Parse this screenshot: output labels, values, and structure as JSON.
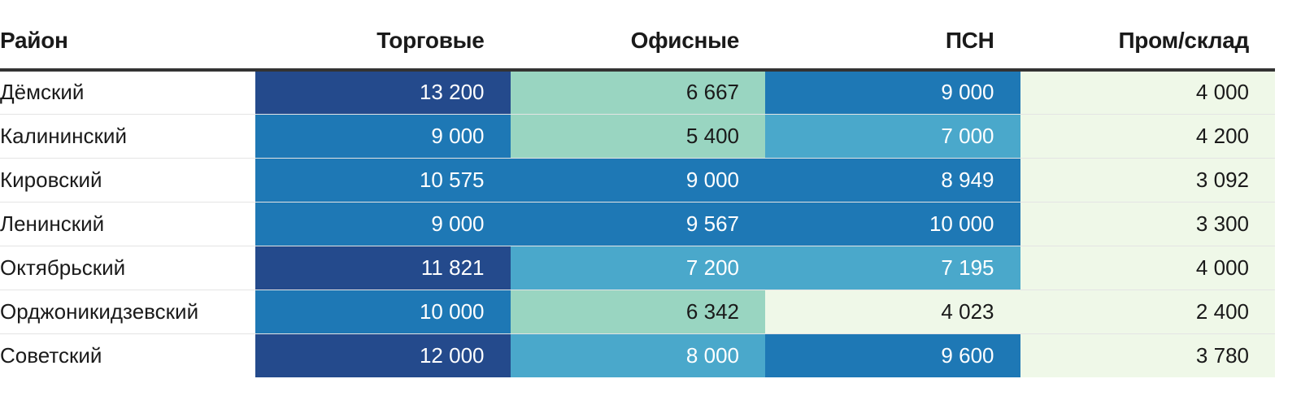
{
  "colors": {
    "text_light": "#ffffff",
    "text_dark": "#1a1a1a",
    "header_rule": "#333333",
    "row_divider": "#e4e4e4",
    "scale": [
      "#eff8e8",
      "#99d5c1",
      "#4aa8cb",
      "#1e78b5",
      "#244a8c"
    ],
    "scale_thresholds": [
      4500,
      7000,
      8500,
      11000
    ]
  },
  "chart_data": {
    "type": "table",
    "headers": [
      "Район",
      "Торговые",
      "Офисные",
      "ПСН",
      "Пром/склад"
    ],
    "rows": [
      {
        "district": "Дёмский",
        "values": [
          13200,
          6667,
          9000,
          4000
        ],
        "labels": [
          "13 200",
          "6 667",
          "9 000",
          "4 000"
        ]
      },
      {
        "district": "Калининский",
        "values": [
          9000,
          5400,
          7000,
          4200
        ],
        "labels": [
          "9 000",
          "5 400",
          "7 000",
          "4 200"
        ]
      },
      {
        "district": "Кировский",
        "values": [
          10575,
          9000,
          8949,
          3092
        ],
        "labels": [
          "10 575",
          "9 000",
          "8 949",
          "3 092"
        ]
      },
      {
        "district": "Ленинский",
        "values": [
          9000,
          9567,
          10000,
          3300
        ],
        "labels": [
          "9 000",
          "9 567",
          "10 000",
          "3 300"
        ]
      },
      {
        "district": "Октябрьский",
        "values": [
          11821,
          7200,
          7195,
          4000
        ],
        "labels": [
          "11 821",
          "7 200",
          "7 195",
          "4 000"
        ]
      },
      {
        "district": "Орджоникидзевский",
        "values": [
          10000,
          6342,
          4023,
          2400
        ],
        "labels": [
          "10 000",
          "6 342",
          "4 023",
          "2 400"
        ]
      },
      {
        "district": "Советский",
        "values": [
          12000,
          8000,
          9600,
          3780
        ],
        "labels": [
          "12 000",
          "8 000",
          "9 600",
          "3 780"
        ]
      }
    ]
  }
}
